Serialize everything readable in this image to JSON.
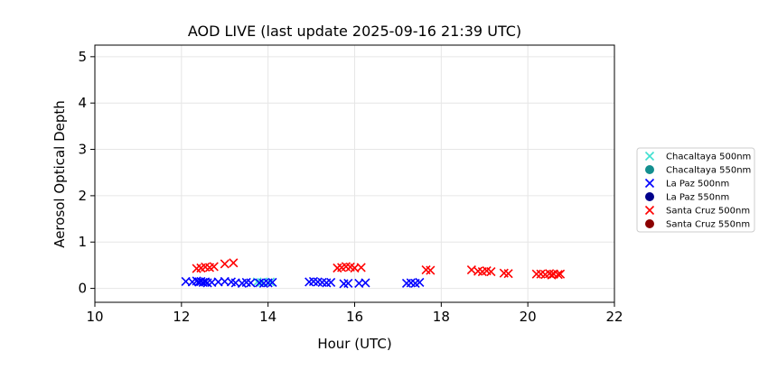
{
  "chart_data": {
    "type": "scatter",
    "title": "AOD LIVE (last update 2025-09-16 21:39 UTC)",
    "xlabel": "Hour (UTC)",
    "ylabel": "Aerosol Optical Depth",
    "xlim": [
      10,
      22
    ],
    "ylim": [
      -0.3,
      5.25
    ],
    "xticks": [
      10,
      12,
      14,
      16,
      18,
      20,
      22
    ],
    "yticks": [
      0,
      1,
      2,
      3,
      4,
      5
    ],
    "grid": true,
    "legend_position": "outside-right",
    "series": [
      {
        "name": "Chacaltaya 500nm",
        "marker": "x",
        "color": "#40e0d0",
        "x": [
          13.75,
          13.85,
          14.05
        ],
        "y": [
          0.14,
          0.13,
          0.14
        ]
      },
      {
        "name": "Chacaltaya 550nm",
        "marker": "o",
        "color": "#138f8f",
        "x": [],
        "y": []
      },
      {
        "name": "La Paz 500nm",
        "marker": "x",
        "color": "#0000ff",
        "x": [
          12.1,
          12.25,
          12.35,
          12.4,
          12.45,
          12.5,
          12.55,
          12.6,
          12.7,
          12.85,
          13.0,
          13.15,
          13.25,
          13.4,
          13.5,
          13.6,
          13.8,
          13.9,
          14.0,
          14.1,
          14.95,
          15.05,
          15.15,
          15.25,
          15.35,
          15.45,
          15.75,
          15.85,
          16.1,
          16.25,
          17.2,
          17.3,
          17.4,
          17.5
        ],
        "y": [
          0.15,
          0.14,
          0.16,
          0.14,
          0.15,
          0.13,
          0.14,
          0.12,
          0.13,
          0.14,
          0.15,
          0.14,
          0.12,
          0.11,
          0.13,
          0.12,
          0.12,
          0.11,
          0.12,
          0.13,
          0.14,
          0.15,
          0.14,
          0.13,
          0.12,
          0.13,
          0.1,
          0.11,
          0.11,
          0.12,
          0.11,
          0.12,
          0.11,
          0.13
        ]
      },
      {
        "name": "La Paz 550nm",
        "marker": "o",
        "color": "#00008b",
        "x": [],
        "y": []
      },
      {
        "name": "Santa Cruz 500nm",
        "marker": "x",
        "color": "#ff0000",
        "x": [
          12.35,
          12.45,
          12.55,
          12.65,
          12.75,
          13.0,
          13.2,
          15.6,
          15.7,
          15.8,
          15.9,
          16.0,
          16.15,
          17.65,
          17.75,
          18.7,
          18.85,
          18.95,
          19.05,
          19.15,
          19.45,
          19.55,
          20.2,
          20.3,
          20.4,
          20.5,
          20.55,
          20.6,
          20.7,
          20.75
        ],
        "y": [
          0.43,
          0.44,
          0.46,
          0.45,
          0.47,
          0.53,
          0.55,
          0.44,
          0.45,
          0.47,
          0.46,
          0.44,
          0.45,
          0.4,
          0.39,
          0.4,
          0.37,
          0.36,
          0.38,
          0.36,
          0.33,
          0.32,
          0.31,
          0.31,
          0.3,
          0.32,
          0.29,
          0.31,
          0.3,
          0.31
        ]
      },
      {
        "name": "Santa Cruz 550nm",
        "marker": "o",
        "color": "#8b0000",
        "x": [],
        "y": []
      }
    ]
  }
}
